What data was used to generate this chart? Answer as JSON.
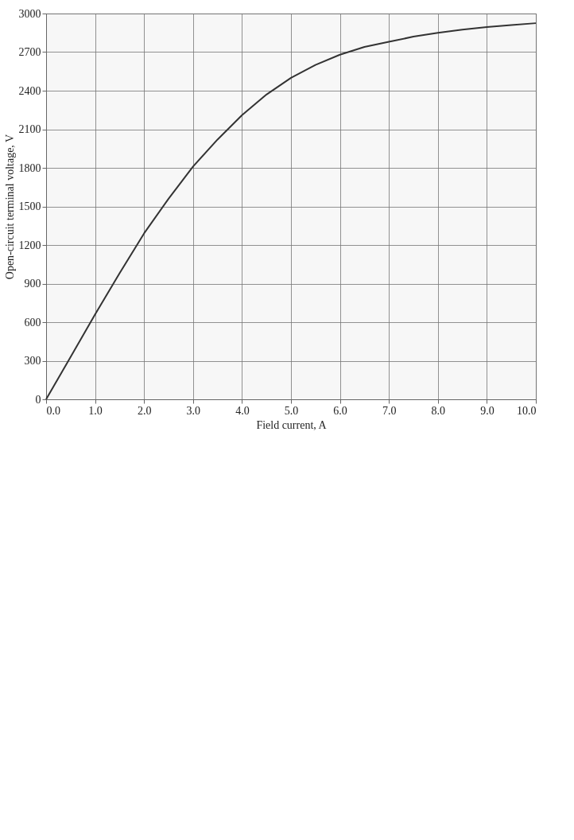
{
  "chart_data": {
    "type": "line",
    "xlabel": "Field current, A",
    "ylabel": "Open-circuit terminal voltage, V",
    "x": [
      0,
      0.5,
      1,
      1.5,
      2,
      2.5,
      3,
      3.5,
      4,
      4.5,
      5,
      5.5,
      6,
      6.5,
      7,
      7.5,
      8,
      8.5,
      9,
      9.5,
      10
    ],
    "series": [
      {
        "color": "#333333",
        "values": [
          0,
          330,
          660,
          980,
          1290,
          1560,
          1810,
          2020,
          2210,
          2370,
          2500,
          2600,
          2680,
          2740,
          2780,
          2820,
          2850,
          2875,
          2895,
          2910,
          2925
        ]
      }
    ],
    "xlim": [
      0,
      10
    ],
    "ylim": [
      0,
      3000
    ],
    "xticks": [
      {
        "value": 0,
        "label": "0.0"
      },
      {
        "value": 1,
        "label": "1.0"
      },
      {
        "value": 2,
        "label": "2.0"
      },
      {
        "value": 3,
        "label": "3.0"
      },
      {
        "value": 4,
        "label": "4.0"
      },
      {
        "value": 5,
        "label": "5.0"
      },
      {
        "value": 6,
        "label": "6.0"
      },
      {
        "value": 7,
        "label": "7.0"
      },
      {
        "value": 8,
        "label": "8.0"
      },
      {
        "value": 9,
        "label": "9.0"
      },
      {
        "value": 10,
        "label": "10.0"
      }
    ],
    "yticks": [
      0,
      300,
      600,
      900,
      1200,
      1500,
      1800,
      2100,
      2400,
      2700,
      3000
    ],
    "grid": true,
    "marker": "none",
    "line_style": "solid"
  }
}
